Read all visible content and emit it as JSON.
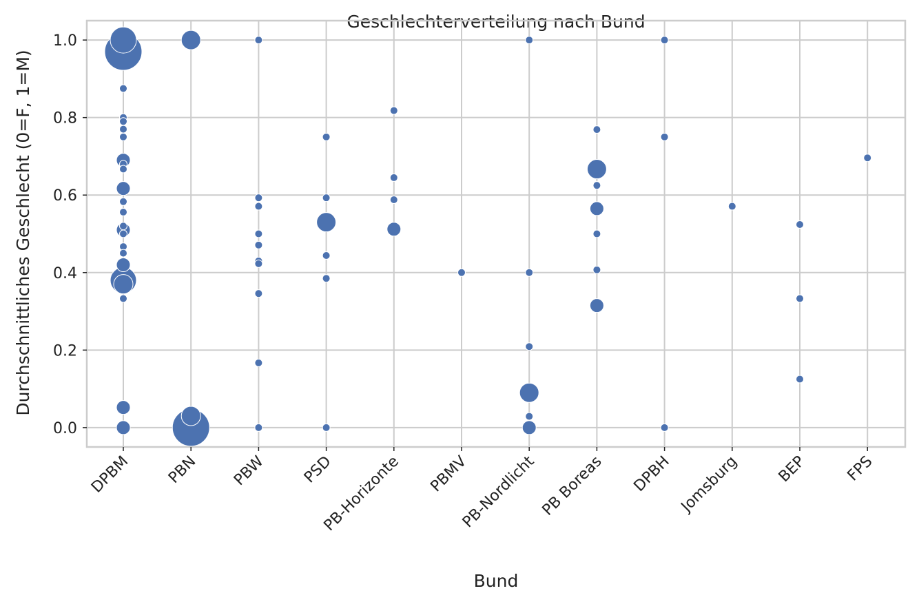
{
  "chart_data": {
    "type": "scatter",
    "title": "Geschlechterverteilung nach Bund",
    "xlabel": "Bund",
    "ylabel": "Durchschnittliches Geschlecht (0=F, 1=M)",
    "ylim": [
      -0.05,
      1.05
    ],
    "yticks": [
      "0.0",
      "0.2",
      "0.4",
      "0.6",
      "0.8",
      "1.0"
    ],
    "grid": true,
    "legend": "none",
    "point_color": "#4c72b0",
    "categories": [
      "DPBM",
      "PBN",
      "PBW",
      "PSD",
      "PB-Horizonte",
      "PBMV",
      "PB-Nordlicht",
      "PB Boreas",
      "DPBH",
      "Jomsburg",
      "BEP",
      "FPS"
    ],
    "points": [
      {
        "x": "DPBM",
        "y": 1.0,
        "size": 4
      },
      {
        "x": "DPBM",
        "y": 0.97,
        "size": 5
      },
      {
        "x": "DPBM",
        "y": 0.875,
        "size": 1
      },
      {
        "x": "DPBM",
        "y": 0.8,
        "size": 1
      },
      {
        "x": "DPBM",
        "y": 0.79,
        "size": 1
      },
      {
        "x": "DPBM",
        "y": 0.77,
        "size": 1
      },
      {
        "x": "DPBM",
        "y": 0.75,
        "size": 1
      },
      {
        "x": "DPBM",
        "y": 0.69,
        "size": 2
      },
      {
        "x": "DPBM",
        "y": 0.68,
        "size": 1
      },
      {
        "x": "DPBM",
        "y": 0.667,
        "size": 1
      },
      {
        "x": "DPBM",
        "y": 0.617,
        "size": 2
      },
      {
        "x": "DPBM",
        "y": 0.583,
        "size": 1
      },
      {
        "x": "DPBM",
        "y": 0.556,
        "size": 1
      },
      {
        "x": "DPBM",
        "y": 0.52,
        "size": 1
      },
      {
        "x": "DPBM",
        "y": 0.51,
        "size": 2
      },
      {
        "x": "DPBM",
        "y": 0.5,
        "size": 1
      },
      {
        "x": "DPBM",
        "y": 0.467,
        "size": 1
      },
      {
        "x": "DPBM",
        "y": 0.45,
        "size": 1
      },
      {
        "x": "DPBM",
        "y": 0.42,
        "size": 2
      },
      {
        "x": "DPBM",
        "y": 0.38,
        "size": 4
      },
      {
        "x": "DPBM",
        "y": 0.37,
        "size": 3
      },
      {
        "x": "DPBM",
        "y": 0.333,
        "size": 1
      },
      {
        "x": "DPBM",
        "y": 0.052,
        "size": 2
      },
      {
        "x": "DPBM",
        "y": 0.0,
        "size": 2
      },
      {
        "x": "PBN",
        "y": 1.0,
        "size": 3
      },
      {
        "x": "PBN",
        "y": 0.03,
        "size": 3
      },
      {
        "x": "PBN",
        "y": 0.0,
        "size": 5
      },
      {
        "x": "PBW",
        "y": 1.0,
        "size": 1
      },
      {
        "x": "PBW",
        "y": 0.593,
        "size": 1
      },
      {
        "x": "PBW",
        "y": 0.571,
        "size": 1
      },
      {
        "x": "PBW",
        "y": 0.5,
        "size": 1
      },
      {
        "x": "PBW",
        "y": 0.471,
        "size": 1
      },
      {
        "x": "PBW",
        "y": 0.43,
        "size": 1
      },
      {
        "x": "PBW",
        "y": 0.423,
        "size": 1
      },
      {
        "x": "PBW",
        "y": 0.346,
        "size": 1
      },
      {
        "x": "PBW",
        "y": 0.167,
        "size": 1
      },
      {
        "x": "PBW",
        "y": 0.0,
        "size": 1
      },
      {
        "x": "PSD",
        "y": 0.75,
        "size": 1
      },
      {
        "x": "PSD",
        "y": 0.593,
        "size": 1
      },
      {
        "x": "PSD",
        "y": 0.53,
        "size": 3
      },
      {
        "x": "PSD",
        "y": 0.444,
        "size": 1
      },
      {
        "x": "PSD",
        "y": 0.385,
        "size": 1
      },
      {
        "x": "PSD",
        "y": 0.0,
        "size": 1
      },
      {
        "x": "PB-Horizonte",
        "y": 0.818,
        "size": 1
      },
      {
        "x": "PB-Horizonte",
        "y": 0.645,
        "size": 1
      },
      {
        "x": "PB-Horizonte",
        "y": 0.588,
        "size": 1
      },
      {
        "x": "PB-Horizonte",
        "y": 0.512,
        "size": 2
      },
      {
        "x": "PBMV",
        "y": 0.4,
        "size": 1
      },
      {
        "x": "PB-Nordlicht",
        "y": 1.0,
        "size": 1
      },
      {
        "x": "PB-Nordlicht",
        "y": 0.4,
        "size": 1
      },
      {
        "x": "PB-Nordlicht",
        "y": 0.209,
        "size": 1
      },
      {
        "x": "PB-Nordlicht",
        "y": 0.09,
        "size": 3
      },
      {
        "x": "PB-Nordlicht",
        "y": 0.029,
        "size": 1
      },
      {
        "x": "PB-Nordlicht",
        "y": 0.0,
        "size": 2
      },
      {
        "x": "PB Boreas",
        "y": 0.769,
        "size": 1
      },
      {
        "x": "PB Boreas",
        "y": 0.667,
        "size": 3
      },
      {
        "x": "PB Boreas",
        "y": 0.625,
        "size": 1
      },
      {
        "x": "PB Boreas",
        "y": 0.565,
        "size": 2
      },
      {
        "x": "PB Boreas",
        "y": 0.5,
        "size": 1
      },
      {
        "x": "PB Boreas",
        "y": 0.407,
        "size": 1
      },
      {
        "x": "PB Boreas",
        "y": 0.315,
        "size": 2
      },
      {
        "x": "DPBH",
        "y": 1.0,
        "size": 1
      },
      {
        "x": "DPBH",
        "y": 0.75,
        "size": 1
      },
      {
        "x": "DPBH",
        "y": 0.0,
        "size": 1
      },
      {
        "x": "Jomsburg",
        "y": 0.571,
        "size": 1
      },
      {
        "x": "BEP",
        "y": 0.524,
        "size": 1
      },
      {
        "x": "BEP",
        "y": 0.333,
        "size": 1
      },
      {
        "x": "BEP",
        "y": 0.125,
        "size": 1
      },
      {
        "x": "FPS",
        "y": 0.696,
        "size": 1
      }
    ]
  }
}
